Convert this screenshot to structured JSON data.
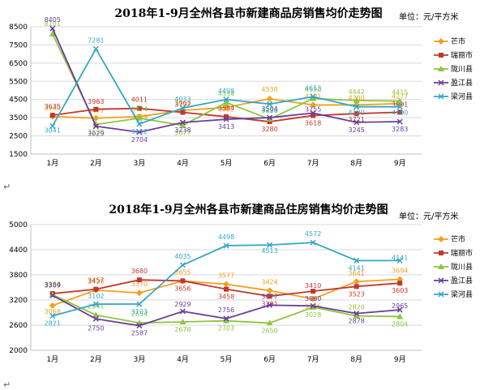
{
  "chart_data": [
    {
      "type": "line",
      "title": "2018年1-9月全州各县市新建商品房销售均价走势图",
      "unit": "单位：元/平方米",
      "categories": [
        "1月",
        "2月",
        "3月",
        "4月",
        "5月",
        "6月",
        "7月",
        "8月",
        "9月"
      ],
      "y_ticks": [
        "1500",
        "2500",
        "3500",
        "4500",
        "5500",
        "6500",
        "7500",
        "8500"
      ],
      "ylim": [
        1500,
        8500
      ],
      "series": [
        {
          "name": "芒市",
          "color": "#f0a01e",
          "marker": "diamond",
          "values": [
            3560,
            3477,
            3559,
            3902,
            4062,
            4538,
            4201,
            4200,
            4277
          ],
          "labels": [
            "3560",
            "3477",
            "3559",
            "3902",
            "4062",
            "4538",
            "4201",
            "4200",
            "4277"
          ]
        },
        {
          "name": "瑞丽市",
          "color": "#c0392b",
          "marker": "square",
          "values": [
            3635,
            3963,
            4011,
            3792,
            3554,
            3280,
            3618,
            3721,
            3801
          ],
          "labels": [
            "3635",
            "3963",
            "4011",
            "3792",
            "3554",
            "3280",
            "3618",
            "3721",
            "3801"
          ]
        },
        {
          "name": "陇川县",
          "color": "#8cc63f",
          "marker": "triangle",
          "values": [
            8101,
            3128,
            3474,
            3077,
            4334,
            3420,
            4550,
            4442,
            4415
          ],
          "labels": [
            "8101",
            "3128",
            "3474",
            "3077",
            "4334",
            "3420",
            "4550",
            "4442",
            "4415"
          ]
        },
        {
          "name": "盈江县",
          "color": "#6a3d9a",
          "marker": "x",
          "values": [
            8405,
            3029,
            2704,
            3238,
            3413,
            3504,
            3755,
            3245,
            3283
          ],
          "labels": [
            "8405",
            "3029",
            "2704",
            "3238",
            "3413",
            "3504",
            "3755",
            "3245",
            "3283"
          ]
        },
        {
          "name": "梁河县",
          "color": "#35a7c8",
          "marker": "x",
          "values": [
            3041,
            7281,
            3152,
            4033,
            4498,
            4250,
            4653,
            4100,
            4100
          ],
          "labels": [
            "3041",
            "7281",
            "3152",
            "4033",
            "4498",
            "4250",
            "4653",
            "4100",
            "4100"
          ]
        }
      ]
    },
    {
      "type": "line",
      "title": "2018年1-9月全州各县市新建商品住房销售均价走势图",
      "unit": "单位：元/平方米",
      "categories": [
        "1月",
        "2月",
        "3月",
        "4月",
        "5月",
        "6月",
        "7月",
        "8月",
        "9月"
      ],
      "y_ticks": [
        "2000",
        "2600",
        "3200",
        "3800",
        "4400",
        "5000"
      ],
      "ylim": [
        2000,
        5000
      ],
      "series": [
        {
          "name": "芒市",
          "color": "#f0a01e",
          "marker": "diamond",
          "values": [
            3068,
            3435,
            3370,
            3655,
            3577,
            3424,
            3226,
            3641,
            3694
          ],
          "labels": [
            "3068",
            "3435",
            "3370",
            "3655",
            "3577",
            "3424",
            "3226",
            "3641",
            "3694"
          ]
        },
        {
          "name": "瑞丽市",
          "color": "#c0392b",
          "marker": "square",
          "values": [
            3354,
            3457,
            3680,
            3656,
            3458,
            3291,
            3410,
            3523,
            3603
          ],
          "labels": [
            "3354",
            "3457",
            "3680",
            "3656",
            "3458",
            "3291",
            "3410",
            "3523",
            "3603"
          ]
        },
        {
          "name": "陇川县",
          "color": "#8cc63f",
          "marker": "triangle",
          "values": [
            3326,
            2841,
            2654,
            2678,
            2703,
            2650,
            3028,
            2820,
            2804
          ],
          "labels": [
            "3326",
            "2841",
            "2654",
            "2678",
            "2703",
            "2650",
            "3028",
            "2820",
            "2804"
          ]
        },
        {
          "name": "盈江县",
          "color": "#6a3d9a",
          "marker": "x",
          "values": [
            3309,
            2750,
            2587,
            2929,
            2756,
            3077,
            3060,
            2878,
            2965
          ],
          "labels": [
            "3309",
            "2750",
            "2587",
            "2929",
            "2756",
            "3077",
            "3060",
            "2878",
            "2965"
          ]
        },
        {
          "name": "梁河县",
          "color": "#35a7c8",
          "marker": "x",
          "values": [
            2821,
            3102,
            3103,
            4035,
            4498,
            4513,
            4572,
            4141,
            4141
          ],
          "labels": [
            "2821",
            "3102",
            "3103",
            "4035",
            "4498",
            "4513",
            "4572",
            "4141",
            "4141"
          ]
        }
      ]
    }
  ],
  "return_mark": "↵"
}
